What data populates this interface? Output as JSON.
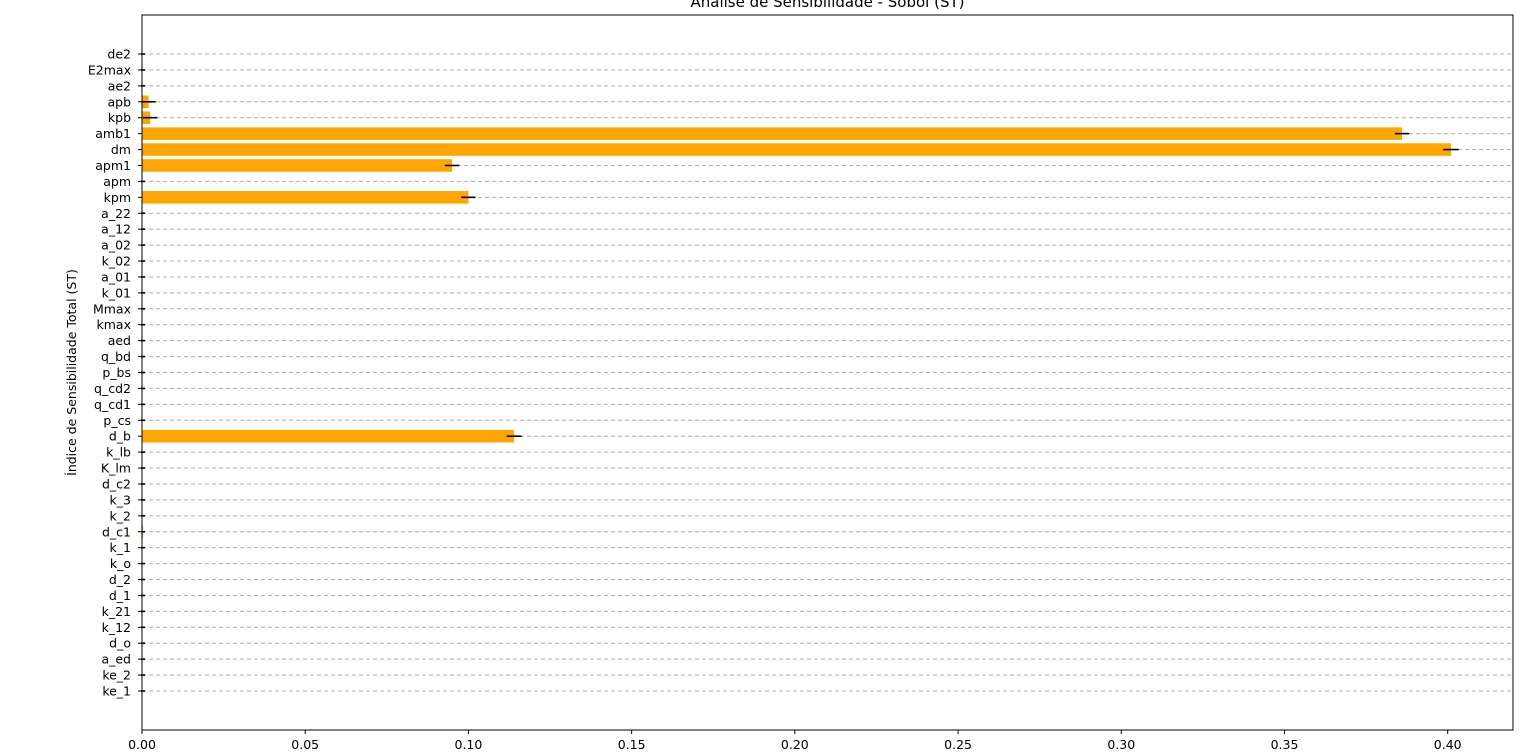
{
  "chart_data": {
    "type": "bar",
    "orientation": "horizontal",
    "title": "Análise de Sensibilidade - Sobol (ST)",
    "xlabel": "",
    "ylabel": "Índice de Sensibilidade Total (ST)",
    "xlim": [
      0,
      0.42
    ],
    "xticks": [
      "0.00",
      "0.05",
      "0.10",
      "0.15",
      "0.20",
      "0.25",
      "0.30",
      "0.35",
      "0.40"
    ],
    "grid": "horizontal dashed",
    "colors": {
      "bar": "#FFA500",
      "error": "#000000",
      "grid": "#b0b0b0"
    },
    "categories": [
      "ke_1",
      "ke_2",
      "a_ed",
      "d_o",
      "k_12",
      "k_21",
      "d_1",
      "d_2",
      "k_o",
      "k_1",
      "d_c1",
      "k_2",
      "k_3",
      "d_c2",
      "K_lm",
      "k_lb",
      "d_b",
      "p_cs",
      "q_cd1",
      "q_cd2",
      "p_bs",
      "q_bd",
      "aed",
      "kmax",
      "Mmax",
      "k_01",
      "a_01",
      "k_02",
      "a_02",
      "a_12",
      "a_22",
      "kpm",
      "apm",
      "apm1",
      "dm",
      "amb1",
      "kpb",
      "apb",
      "ae2",
      "E2max",
      "de2"
    ],
    "values": [
      0,
      0,
      0,
      0,
      0,
      0,
      0,
      0,
      0,
      0,
      0.0003,
      0,
      0,
      0,
      0,
      0,
      0.114,
      0,
      0,
      0,
      0,
      0,
      0,
      0,
      0,
      0,
      0,
      0,
      0,
      0,
      0,
      0.1,
      0,
      0.095,
      0.401,
      0.386,
      0.0025,
      0.002,
      0,
      0,
      0
    ],
    "errors": [
      0.0003,
      0.0003,
      0.0003,
      0.0003,
      0.0003,
      0.0003,
      0.0003,
      0.0003,
      0.0003,
      0.0003,
      0.0005,
      0.0003,
      0.0003,
      0.0003,
      0.0003,
      0.0003,
      0.0023,
      0.0003,
      0.0003,
      0.0003,
      0.0003,
      0.0003,
      0.0003,
      0.0003,
      0.0003,
      0.0003,
      0.0003,
      0.0003,
      0.0003,
      0.0003,
      0.0003,
      0.0022,
      0.0003,
      0.0022,
      0.0024,
      0.0022,
      0.0022,
      0.0022,
      0.0003,
      0.0003,
      0.0003
    ]
  }
}
